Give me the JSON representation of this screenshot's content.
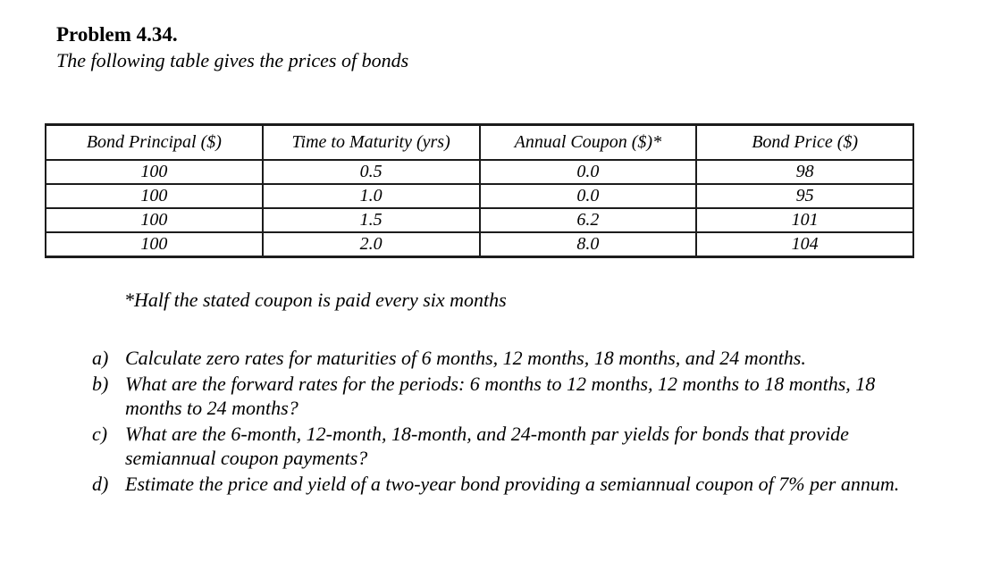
{
  "page": {
    "title": "Problem 4.34.",
    "subtitle": "The following table gives the prices of bonds"
  },
  "bond_table": {
    "headers": [
      "Bond Principal ($)",
      "Time to Maturity (yrs)",
      "Annual Coupon ($)*",
      "Bond Price ($)"
    ],
    "rows": [
      [
        "100",
        "0.5",
        "0.0",
        "98"
      ],
      [
        "100",
        "1.0",
        "0.0",
        "95"
      ],
      [
        "100",
        "1.5",
        "6.2",
        "101"
      ],
      [
        "100",
        "2.0",
        "8.0",
        "104"
      ]
    ]
  },
  "footnote": "*Half the stated coupon is paid every six months",
  "questions": [
    {
      "label": "a)",
      "text": "Calculate zero rates for maturities of 6 months, 12 months, 18 months, and 24 months."
    },
    {
      "label": "b)",
      "text": "What are the forward rates for the periods: 6 months to 12 months, 12 months to 18 months, 18 months to 24 months?"
    },
    {
      "label": "c)",
      "text": "What are the 6-month, 12-month, 18-month, and 24-month par yields for bonds that provide semiannual coupon payments?"
    },
    {
      "label": "d)",
      "text": "Estimate the price and yield of a two-year bond providing a semiannual coupon of 7% per annum."
    }
  ]
}
